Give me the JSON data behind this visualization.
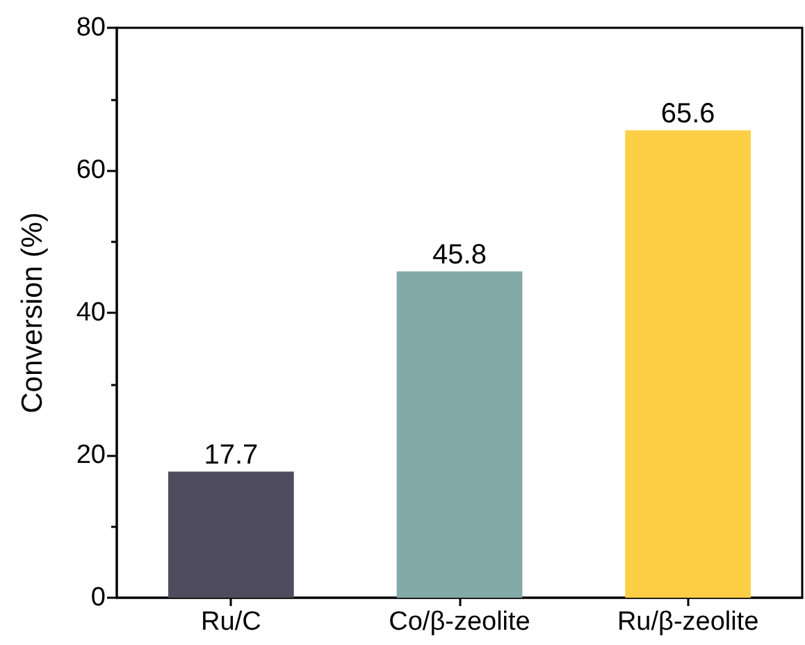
{
  "chart_data": {
    "type": "bar",
    "ylabel": "Conversion (%)",
    "categories": [
      "Ru/C",
      "Co/β-zeolite",
      "Ru/β-zeolite"
    ],
    "values": [
      17.7,
      45.8,
      65.6
    ],
    "colors": [
      "#4f4c5e",
      "#82aaa8",
      "#fecf45"
    ],
    "ylim": [
      0,
      80
    ],
    "yticks": [
      0,
      20,
      40,
      60,
      80
    ],
    "grid": false,
    "data_labels": true
  }
}
